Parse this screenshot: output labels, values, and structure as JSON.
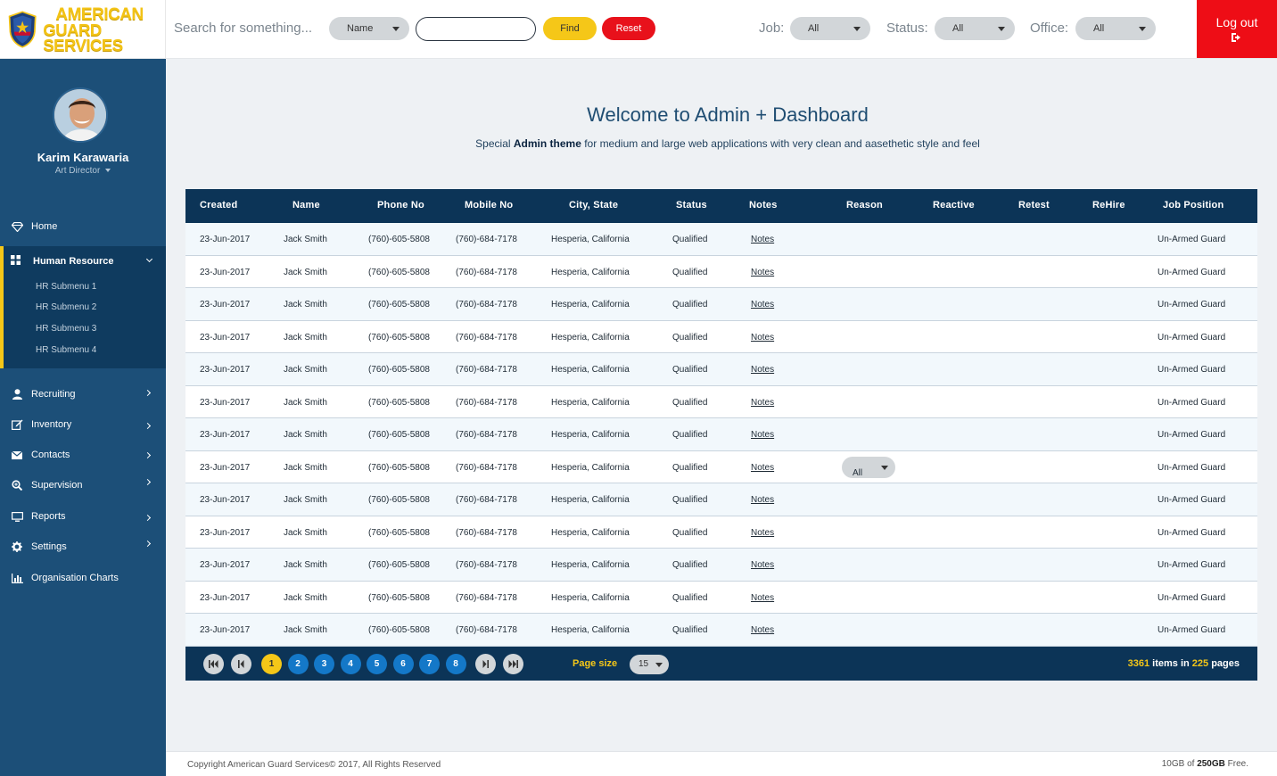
{
  "brand": {
    "line1": "AMERICAN",
    "line2": "GUARD SERVICES"
  },
  "search": {
    "prompt": "Search for something...",
    "field_select": "Name",
    "input_value": "",
    "find_label": "Find",
    "reset_label": "Reset"
  },
  "filters": {
    "job_label": "Job:",
    "job_value": "All",
    "status_label": "Status:",
    "status_value": "All",
    "office_label": "Office:",
    "office_value": "All"
  },
  "logout_label": "Log out",
  "user": {
    "name": "Karim Karawaria",
    "role": "Art Director"
  },
  "nav": {
    "home": "Home",
    "hr": "Human Resource",
    "hr_sub": [
      "HR Submenu 1",
      "HR Submenu 2",
      "HR Submenu 3",
      "HR Submenu 4"
    ],
    "recruiting": "Recruiting",
    "inventory": "Inventory",
    "contacts": "Contacts",
    "supervision": "Supervision",
    "reports": "Reports",
    "settings": "Settings",
    "org_charts": "Organisation Charts"
  },
  "welcome": {
    "title": "Welcome to Admin + Dashboard",
    "sub_pre": "Special ",
    "sub_bold": "Admin theme",
    "sub_post": " for medium and large web applications with very clean and aasethetic style and feel"
  },
  "table": {
    "headers": [
      "Created",
      "Name",
      "Phone No",
      "Mobile No",
      "City, State",
      "Status",
      "Notes",
      "Reason",
      "Reactive",
      "Retest",
      "ReHire",
      "Job Position"
    ],
    "rows": [
      [
        "23-Jun-2017",
        "Jack Smith",
        "(760)-605-5808",
        "(760)-684-7178",
        "Hesperia, California",
        "Qualified",
        "Notes",
        "",
        "",
        "",
        "",
        "Un-Armed Guard"
      ],
      [
        "23-Jun-2017",
        "Jack Smith",
        "(760)-605-5808",
        "(760)-684-7178",
        "Hesperia, California",
        "Qualified",
        "Notes",
        "",
        "",
        "",
        "",
        "Un-Armed Guard"
      ],
      [
        "23-Jun-2017",
        "Jack Smith",
        "(760)-605-5808",
        "(760)-684-7178",
        "Hesperia, California",
        "Qualified",
        "Notes",
        "",
        "",
        "",
        "",
        "Un-Armed Guard"
      ],
      [
        "23-Jun-2017",
        "Jack Smith",
        "(760)-605-5808",
        "(760)-684-7178",
        "Hesperia, California",
        "Qualified",
        "Notes",
        "",
        "",
        "",
        "",
        "Un-Armed Guard"
      ],
      [
        "23-Jun-2017",
        "Jack Smith",
        "(760)-605-5808",
        "(760)-684-7178",
        "Hesperia, California",
        "Qualified",
        "Notes",
        "",
        "",
        "",
        "",
        "Un-Armed Guard"
      ],
      [
        "23-Jun-2017",
        "Jack Smith",
        "(760)-605-5808",
        "(760)-684-7178",
        "Hesperia, California",
        "Qualified",
        "Notes",
        "",
        "",
        "",
        "",
        "Un-Armed Guard"
      ],
      [
        "23-Jun-2017",
        "Jack Smith",
        "(760)-605-5808",
        "(760)-684-7178",
        "Hesperia, California",
        "Qualified",
        "Notes",
        "",
        "",
        "",
        "",
        "Un-Armed Guard"
      ],
      [
        "23-Jun-2017",
        "Jack Smith",
        "(760)-605-5808",
        "(760)-684-7178",
        "Hesperia, California",
        "Qualified",
        "Notes",
        "All",
        "",
        "",
        "",
        "Un-Armed Guard"
      ],
      [
        "23-Jun-2017",
        "Jack Smith",
        "(760)-605-5808",
        "(760)-684-7178",
        "Hesperia, California",
        "Qualified",
        "Notes",
        "",
        "",
        "",
        "",
        "Un-Armed Guard"
      ],
      [
        "23-Jun-2017",
        "Jack Smith",
        "(760)-605-5808",
        "(760)-684-7178",
        "Hesperia, California",
        "Qualified",
        "Notes",
        "",
        "",
        "",
        "",
        "Un-Armed Guard"
      ],
      [
        "23-Jun-2017",
        "Jack Smith",
        "(760)-605-5808",
        "(760)-684-7178",
        "Hesperia, California",
        "Qualified",
        "Notes",
        "",
        "",
        "",
        "",
        "Un-Armed Guard"
      ],
      [
        "23-Jun-2017",
        "Jack Smith",
        "(760)-605-5808",
        "(760)-684-7178",
        "Hesperia, California",
        "Qualified",
        "Notes",
        "",
        "",
        "",
        "",
        "Un-Armed Guard"
      ],
      [
        "23-Jun-2017",
        "Jack Smith",
        "(760)-605-5808",
        "(760)-684-7178",
        "Hesperia, California",
        "Qualified",
        "Notes",
        "",
        "",
        "",
        "",
        "Un-Armed Guard"
      ]
    ]
  },
  "pagination": {
    "pages": [
      "1",
      "2",
      "3",
      "4",
      "5",
      "6",
      "7",
      "8"
    ],
    "active_page": "1",
    "page_size_label": "Page size",
    "page_size_value": "15",
    "total_items": "3361",
    "items_text": " items in ",
    "total_pages": "225",
    "pages_text": " pages"
  },
  "footer": {
    "copyright": "Copyright American Guard Services© 2017, All Rights Reserved",
    "storage_used": "10GB of ",
    "storage_total": "250GB",
    "storage_suffix": " Free."
  },
  "colors": {
    "sidebar": "#1c4f78",
    "sidebar_active": "#0f3b5f",
    "table_header": "#0c3457",
    "accent_yellow": "#f5c718",
    "accent_red": "#ee0d16",
    "page_blue": "#1478c8"
  }
}
